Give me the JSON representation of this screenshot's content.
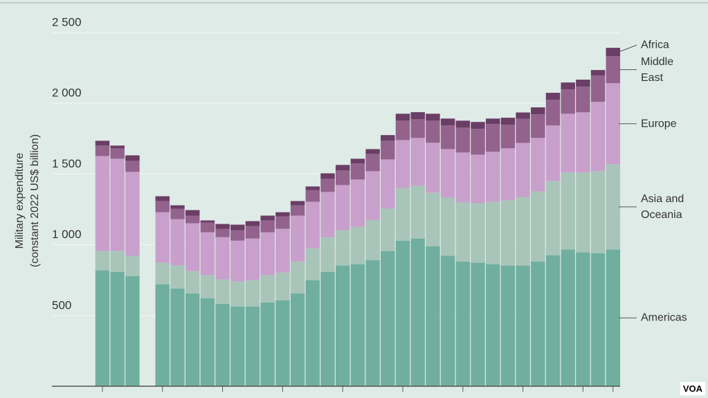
{
  "chart_data": {
    "type": "stacked_bar",
    "y_label": [
      "Military expenditure",
      "(constant 2022 US$ billion)"
    ],
    "categories": [
      null,
      null,
      null,
      null,
      null,
      null,
      null,
      null,
      null,
      null,
      null,
      null,
      null,
      null,
      null,
      null,
      null,
      null,
      null,
      null,
      null,
      null,
      null,
      null,
      null,
      null,
      null,
      null,
      null,
      null,
      null,
      null,
      null,
      null,
      null
    ],
    "series": [
      {
        "name": "Americas",
        "color": "#70afa0",
        "values": [
          819,
          809,
          779,
          null,
          721,
          691,
          657,
          623,
          583,
          564,
          564,
          593,
          608,
          657,
          750,
          809,
          853,
          863,
          892,
          956,
          1029,
          1044,
          990,
          922,
          882,
          873,
          863,
          853,
          853,
          882,
          926,
          966,
          946,
          941,
          966
        ]
      },
      {
        "name": "Asia and Oceania",
        "color": "#a9c5b9",
        "values": [
          137,
          147,
          143,
          null,
          152,
          162,
          157,
          161,
          172,
          176,
          186,
          191,
          196,
          225,
          225,
          245,
          250,
          264,
          284,
          299,
          373,
          373,
          378,
          411,
          417,
          421,
          441,
          461,
          485,
          495,
          525,
          544,
          564,
          579,
          603
        ]
      },
      {
        "name": "Europe",
        "color": "#c8a0cb",
        "values": [
          671,
          652,
          593,
          null,
          357,
          328,
          338,
          304,
          299,
          289,
          294,
          304,
          309,
          324,
          329,
          319,
          319,
          334,
          344,
          348,
          338,
          338,
          353,
          343,
          353,
          343,
          353,
          368,
          382,
          378,
          392,
          416,
          426,
          490,
          573
        ]
      },
      {
        "name": "Middle East",
        "color": "#93638e",
        "values": [
          74,
          73,
          78,
          null,
          79,
          74,
          54,
          69,
          59,
          74,
          88,
          84,
          88,
          73,
          83,
          93,
          103,
          113,
          122,
          132,
          137,
          132,
          156,
          167,
          176,
          182,
          196,
          167,
          171,
          167,
          182,
          172,
          182,
          186,
          191
        ]
      },
      {
        "name": "Africa",
        "color": "#6a3e65",
        "values": [
          34,
          20,
          39,
          null,
          34,
          24,
          39,
          15,
          34,
          39,
          35,
          34,
          29,
          30,
          25,
          39,
          39,
          34,
          34,
          40,
          49,
          50,
          49,
          49,
          49,
          49,
          39,
          49,
          44,
          49,
          49,
          49,
          49,
          39,
          59
        ]
      }
    ],
    "ylim": [
      0,
      2500
    ],
    "yticks": [
      {
        "value": 500,
        "label": "500"
      },
      {
        "value": 1000,
        "label": "1 000"
      },
      {
        "value": 1500,
        "label": "1 500"
      },
      {
        "value": 2000,
        "label": "2 000"
      },
      {
        "value": 2500,
        "label": "2 500"
      }
    ],
    "grid": true
  },
  "watermark": "VOA"
}
